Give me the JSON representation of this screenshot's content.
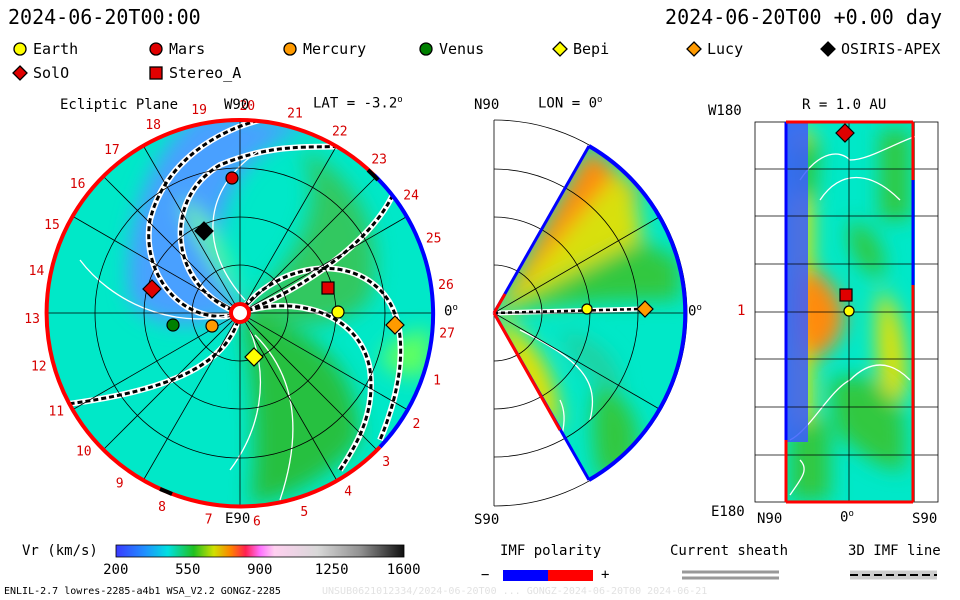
{
  "header": {
    "date_left": "2024-06-20T00:00",
    "date_right": "2024-06-20T00 +0.00 day"
  },
  "legend": [
    {
      "label": "Earth",
      "shape": "circle",
      "color": "#ffff00"
    },
    {
      "label": "Mars",
      "shape": "circle",
      "color": "#e00000"
    },
    {
      "label": "Mercury",
      "shape": "circle",
      "color": "#ff9a00"
    },
    {
      "label": "Venus",
      "shape": "circle",
      "color": "#008000"
    },
    {
      "label": "Bepi",
      "shape": "diamond",
      "color": "#ffff00"
    },
    {
      "label": "Lucy",
      "shape": "diamond",
      "color": "#ff9a00"
    },
    {
      "label": "OSIRIS-APEX",
      "shape": "diamond",
      "color": "#000000"
    },
    {
      "label": "SolO",
      "shape": "diamond",
      "color": "#e00000"
    },
    {
      "label": "Stereo_A",
      "shape": "square",
      "color": "#e00000"
    }
  ],
  "ecliptic": {
    "title": "Ecliptic Plane",
    "top_label": "W90",
    "bottom_label": "E90",
    "right_label": "0",
    "lat_label": "LAT = -3.2",
    "sector_numbers": [
      "20",
      "21",
      "22",
      "23",
      "24",
      "25",
      "26",
      "27",
      "1",
      "2",
      "3",
      "4",
      "5",
      "6",
      "7",
      "8",
      "9",
      "10",
      "11",
      "12",
      "13",
      "14",
      "15",
      "16",
      "17",
      "18",
      "19"
    ]
  },
  "meridional": {
    "top_label": "N90",
    "bottom_label": "S90",
    "lon_label": "LON = 0",
    "right_label": "0"
  },
  "sphere": {
    "top_label": "W180",
    "left_mid_label": "1",
    "bottom_left_label": "E180",
    "title": "R = 1.0 AU",
    "xticks": [
      "N90",
      "0",
      "S90"
    ]
  },
  "colorbar": {
    "label": "Vr (km/s)",
    "ticks": [
      "200",
      "550",
      "900",
      "1250",
      "1600"
    ]
  },
  "imf_polarity": {
    "title": "IMF polarity",
    "minus": "−",
    "plus": "+",
    "neg_color": "#0000ff",
    "pos_color": "#ff0000"
  },
  "current_sheath": {
    "title": "Current sheath"
  },
  "imf_line": {
    "title": "3D IMF line"
  },
  "footer": {
    "left": "ENLIL-2.7 lowres-2285-a4b1 WSA_V2.2 GONGZ-2285",
    "right": "UNSUB0621012334/2024-06-20T00 ... GONGZ-2024-06-20T00  2024-06-21"
  }
}
